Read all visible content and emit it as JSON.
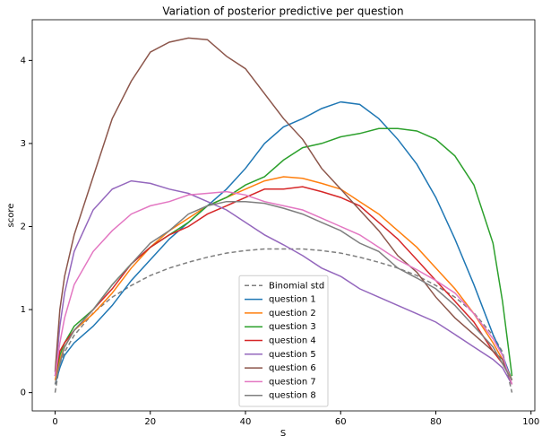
{
  "chart_data": {
    "type": "line",
    "title": "Variation of posterior predictive per question",
    "x_label": "S",
    "y_label": "score",
    "x": [
      0,
      1,
      2,
      4,
      8,
      12,
      16,
      20,
      24,
      28,
      32,
      36,
      40,
      44,
      48,
      52,
      56,
      60,
      64,
      68,
      72,
      76,
      80,
      84,
      88,
      92,
      94,
      96
    ],
    "xlim": [
      -4.8,
      100.8
    ],
    "xticks": [
      0,
      20,
      40,
      60,
      80,
      100
    ],
    "ylim": [
      -0.22,
      4.49
    ],
    "yticks": [
      0,
      1,
      2,
      3,
      4
    ],
    "legend": "lower center",
    "series": [
      {
        "name": "Binomial std",
        "color": "#7f7f7f",
        "linestyle": "dashed",
        "values": [
          0,
          0.35,
          0.49,
          0.69,
          0.96,
          1.15,
          1.29,
          1.41,
          1.5,
          1.57,
          1.63,
          1.68,
          1.71,
          1.73,
          1.73,
          1.73,
          1.71,
          1.68,
          1.63,
          1.57,
          1.5,
          1.41,
          1.29,
          1.15,
          0.96,
          0.69,
          0.49,
          0
        ]
      },
      {
        "name": "question 1",
        "color": "#1f77b4",
        "linestyle": "solid",
        "values": [
          0.1,
          0.3,
          0.45,
          0.6,
          0.8,
          1.05,
          1.35,
          1.6,
          1.85,
          2.05,
          2.25,
          2.45,
          2.7,
          3.0,
          3.2,
          3.3,
          3.42,
          3.5,
          3.47,
          3.3,
          3.05,
          2.75,
          2.35,
          1.85,
          1.3,
          0.7,
          0.45,
          0.15
        ]
      },
      {
        "name": "question 2",
        "color": "#ff7f0e",
        "linestyle": "solid",
        "values": [
          0.15,
          0.4,
          0.55,
          0.75,
          0.95,
          1.2,
          1.5,
          1.75,
          1.95,
          2.1,
          2.25,
          2.35,
          2.45,
          2.55,
          2.6,
          2.58,
          2.52,
          2.45,
          2.3,
          2.15,
          1.95,
          1.75,
          1.5,
          1.25,
          0.95,
          0.6,
          0.4,
          0.15
        ]
      },
      {
        "name": "question 3",
        "color": "#2ca02c",
        "linestyle": "solid",
        "values": [
          0.2,
          0.45,
          0.6,
          0.8,
          1.0,
          1.3,
          1.55,
          1.75,
          1.9,
          2.05,
          2.25,
          2.35,
          2.5,
          2.6,
          2.8,
          2.95,
          3.0,
          3.08,
          3.12,
          3.18,
          3.18,
          3.15,
          3.05,
          2.85,
          2.5,
          1.8,
          1.1,
          0.2
        ]
      },
      {
        "name": "question 4",
        "color": "#d62728",
        "linestyle": "solid",
        "values": [
          0.2,
          0.5,
          0.6,
          0.75,
          1.0,
          1.25,
          1.55,
          1.75,
          1.9,
          2.0,
          2.15,
          2.25,
          2.35,
          2.45,
          2.45,
          2.48,
          2.42,
          2.35,
          2.25,
          2.05,
          1.85,
          1.6,
          1.35,
          1.1,
          0.85,
          0.5,
          0.35,
          0.15
        ]
      },
      {
        "name": "question 5",
        "color": "#9467bd",
        "linestyle": "solid",
        "values": [
          0.2,
          0.8,
          1.2,
          1.7,
          2.2,
          2.45,
          2.55,
          2.52,
          2.45,
          2.4,
          2.3,
          2.2,
          2.05,
          1.9,
          1.78,
          1.65,
          1.5,
          1.4,
          1.25,
          1.15,
          1.05,
          0.95,
          0.85,
          0.7,
          0.55,
          0.4,
          0.3,
          0.1
        ]
      },
      {
        "name": "question 6",
        "color": "#8c564b",
        "linestyle": "solid",
        "values": [
          0.25,
          1.0,
          1.4,
          1.9,
          2.6,
          3.3,
          3.75,
          4.1,
          4.22,
          4.27,
          4.25,
          4.05,
          3.9,
          3.6,
          3.3,
          3.05,
          2.7,
          2.45,
          2.2,
          1.95,
          1.65,
          1.45,
          1.15,
          0.9,
          0.7,
          0.5,
          0.4,
          0.1
        ]
      },
      {
        "name": "question 7",
        "color": "#e377c2",
        "linestyle": "solid",
        "values": [
          0.2,
          0.6,
          0.9,
          1.3,
          1.7,
          1.95,
          2.15,
          2.25,
          2.3,
          2.38,
          2.4,
          2.42,
          2.38,
          2.3,
          2.25,
          2.2,
          2.1,
          2.0,
          1.9,
          1.75,
          1.6,
          1.48,
          1.35,
          1.2,
          0.95,
          0.65,
          0.45,
          0.1
        ]
      },
      {
        "name": "question 8",
        "color": "#7f7f7f",
        "linestyle": "solid",
        "values": [
          0.1,
          0.35,
          0.55,
          0.75,
          1.0,
          1.3,
          1.55,
          1.8,
          1.95,
          2.15,
          2.25,
          2.3,
          2.3,
          2.28,
          2.22,
          2.15,
          2.05,
          1.95,
          1.8,
          1.7,
          1.5,
          1.38,
          1.25,
          1.05,
          0.8,
          0.55,
          0.35,
          0.15
        ]
      }
    ]
  }
}
